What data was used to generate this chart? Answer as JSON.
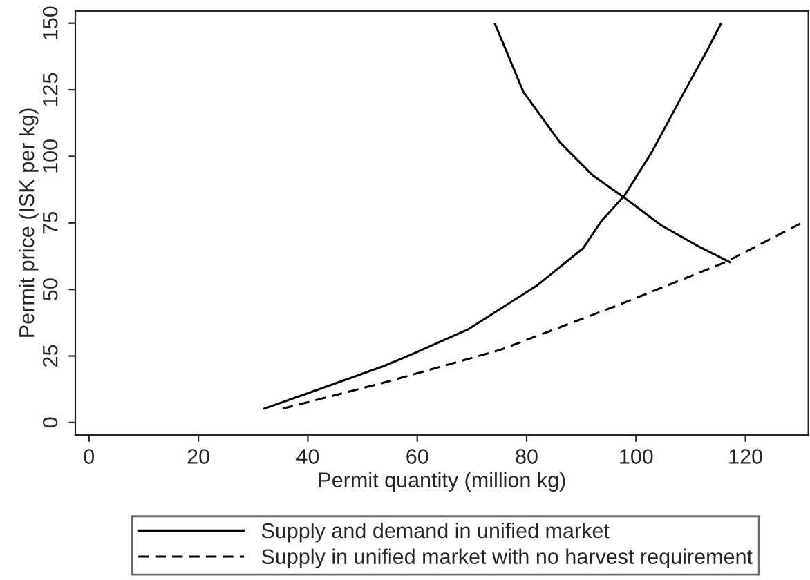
{
  "chart_data": {
    "type": "line",
    "xlabel": "Permit quantity (million kg)",
    "ylabel": "Permit price (ISK per kg)",
    "xlim": [
      -2.5,
      131.5
    ],
    "ylim": [
      -4.7,
      154.6
    ],
    "xticks": [
      0,
      20,
      40,
      60,
      80,
      100,
      120
    ],
    "yticks": [
      0,
      25,
      50,
      75,
      100,
      125,
      150
    ],
    "grid": false,
    "legend": "bottom",
    "series": [
      {
        "name": "Supply and demand in unified market",
        "color": "#000000",
        "line_style": "solid",
        "x": [
          32,
          40,
          54,
          59.3,
          69.4,
          81.9,
          90.3,
          93.7,
          97.9,
          102.9,
          108.8,
          113,
          115.5
        ],
        "values": [
          5.2,
          11,
          21.3,
          25.9,
          35.1,
          51.5,
          65.4,
          75.8,
          85.3,
          101.7,
          124.2,
          139.8,
          149.8
        ]
      },
      {
        "color": "#000000",
        "line_style": "solid",
        "x": [
          74.2,
          79.4,
          86.1,
          92,
          97.9,
          104.6,
          111.3,
          117.2
        ],
        "values": [
          149.8,
          124.2,
          105.2,
          93,
          84.4,
          74.1,
          66.3,
          60.2
        ]
      },
      {
        "name": "Supply in unified market with no harvest requirement",
        "color": "#000000",
        "line_style": "dashed",
        "x": [
          35.4,
          54.3,
          75.2,
          96.2,
          116.3,
          130.2
        ],
        "values": [
          5.2,
          15.2,
          27.3,
          43.7,
          60.2,
          74.9
        ]
      }
    ]
  }
}
